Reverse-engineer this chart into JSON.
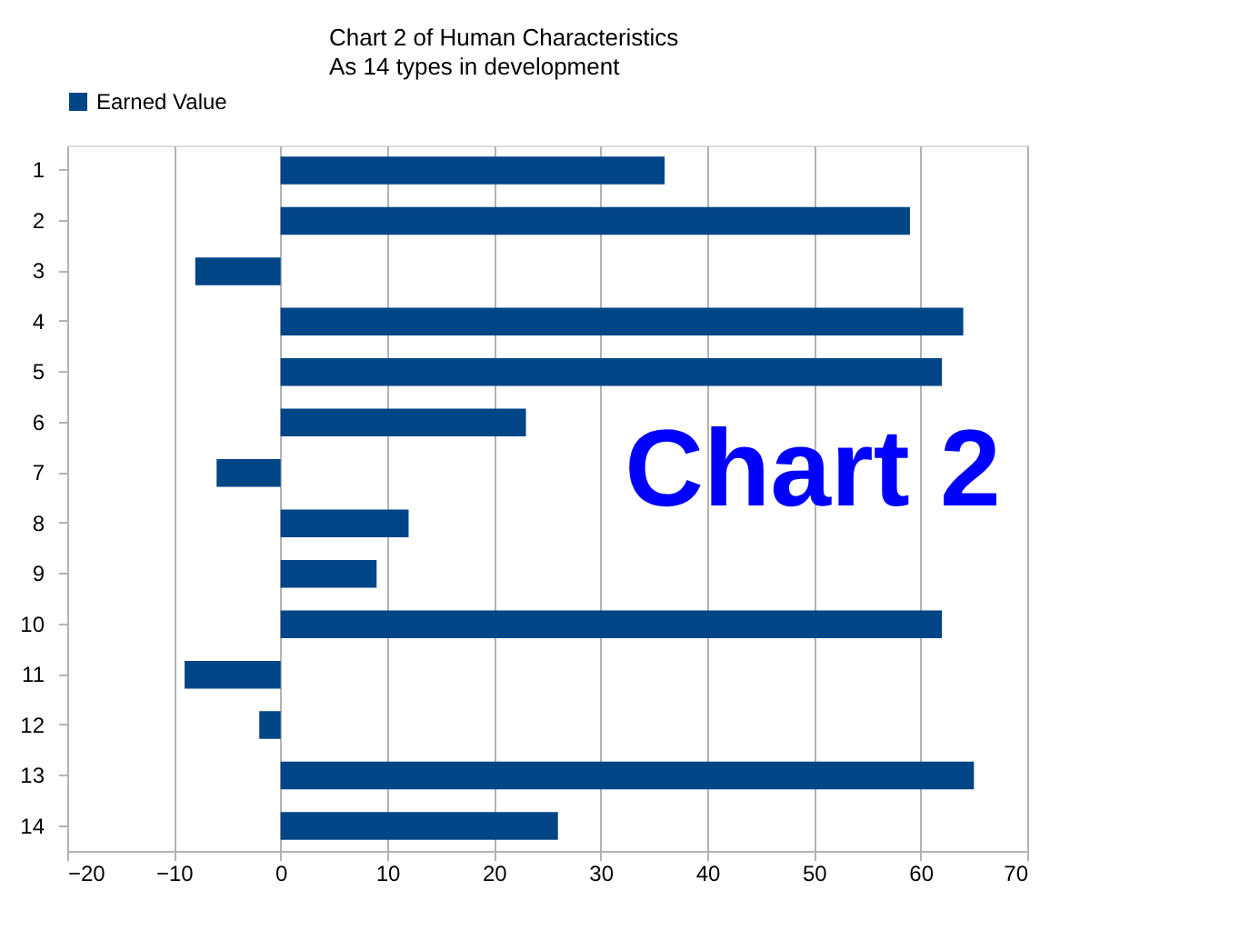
{
  "chart_data": {
    "type": "bar",
    "orientation": "horizontal",
    "title": "Chart 2 of Human Characteristics",
    "subtitle": "As 14 types in development",
    "categories": [
      "1",
      "2",
      "3",
      "4",
      "5",
      "6",
      "7",
      "8",
      "9",
      "10",
      "11",
      "12",
      "13",
      "14"
    ],
    "series": [
      {
        "name": "Earned Value",
        "color": "#004586",
        "values": [
          36,
          59,
          -8,
          64,
          62,
          23,
          -6,
          12,
          9,
          62,
          -9,
          -2,
          65,
          26
        ]
      }
    ],
    "xlim": [
      -20,
      70
    ],
    "xticks": [
      -20,
      -10,
      0,
      10,
      20,
      30,
      40,
      50,
      60,
      70
    ],
    "grid": "x",
    "legend": "top",
    "annotations": [
      "Chart 2"
    ]
  }
}
